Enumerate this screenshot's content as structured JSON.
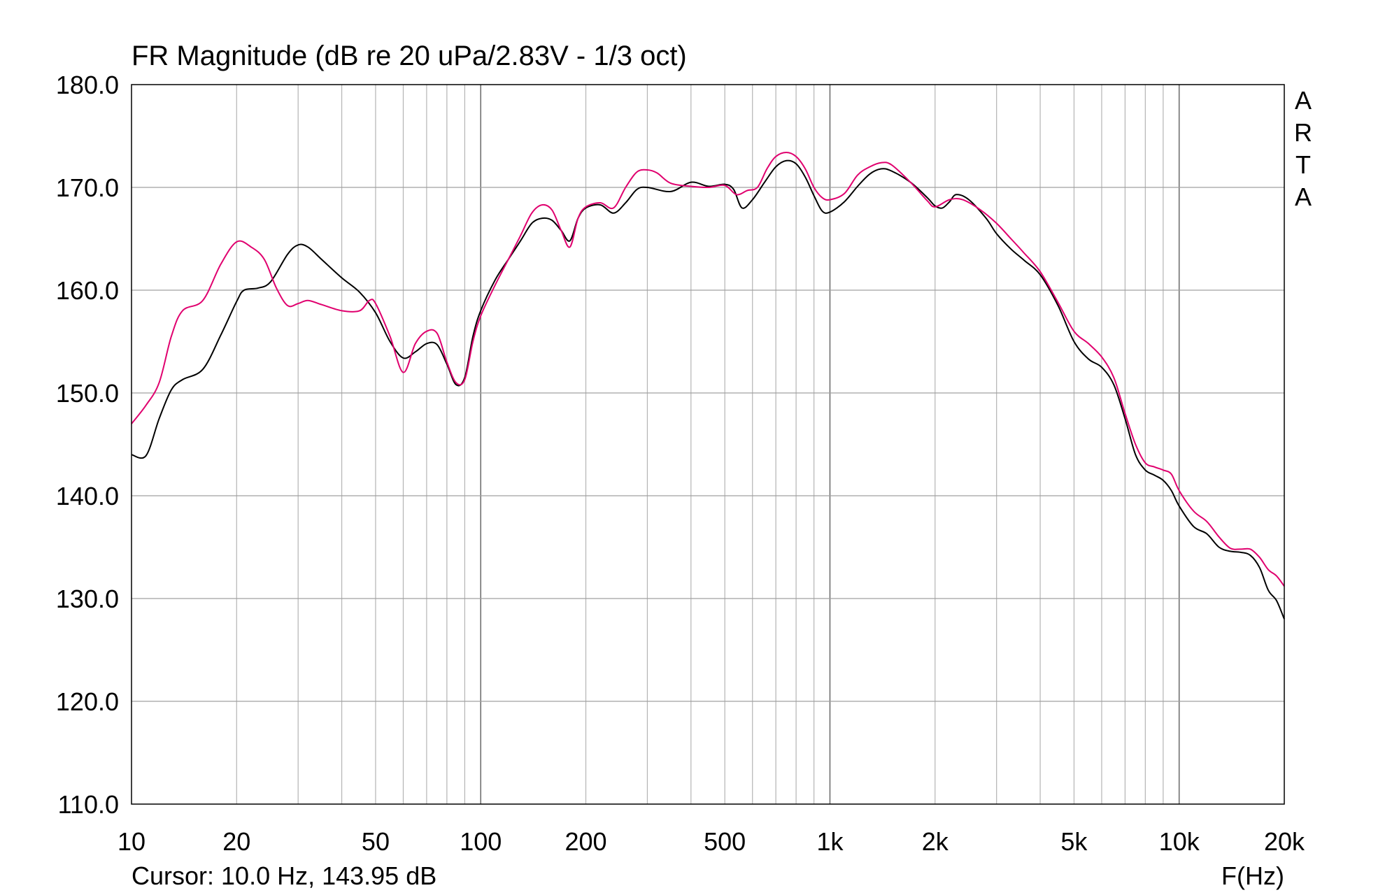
{
  "chart_data": {
    "type": "line",
    "title": "FR Magnitude (dB re 20 uPa/2.83V - 1/3 oct)",
    "xlabel": "F(Hz)",
    "ylabel": "",
    "xscale": "log",
    "xlim": [
      10,
      20000
    ],
    "ylim": [
      110,
      180
    ],
    "grid": true,
    "watermark": "ARTA",
    "cursor_text": "Cursor: 10.0 Hz, 143.95 dB",
    "x_ticks": [
      {
        "value": 10,
        "label": "10"
      },
      {
        "value": 20,
        "label": "20"
      },
      {
        "value": 50,
        "label": "50"
      },
      {
        "value": 100,
        "label": "100"
      },
      {
        "value": 200,
        "label": "200"
      },
      {
        "value": 500,
        "label": "500"
      },
      {
        "value": 1000,
        "label": "1k"
      },
      {
        "value": 2000,
        "label": "2k"
      },
      {
        "value": 5000,
        "label": "5k"
      },
      {
        "value": 10000,
        "label": "10k"
      },
      {
        "value": 20000,
        "label": "20k"
      }
    ],
    "y_ticks": [
      {
        "value": 110,
        "label": "110.0"
      },
      {
        "value": 120,
        "label": "120.0"
      },
      {
        "value": 130,
        "label": "130.0"
      },
      {
        "value": 140,
        "label": "140.0"
      },
      {
        "value": 150,
        "label": "150.0"
      },
      {
        "value": 160,
        "label": "160.0"
      },
      {
        "value": 170,
        "label": "170.0"
      },
      {
        "value": 180,
        "label": "180.0"
      }
    ],
    "colors": {
      "background": "#ffffff",
      "grid": "#a0a0a0",
      "frame": "#000000"
    },
    "series": [
      {
        "color": "#000000",
        "points": [
          [
            10,
            144.0
          ],
          [
            11,
            143.9
          ],
          [
            12,
            147.5
          ],
          [
            13,
            150.3
          ],
          [
            14,
            151.3
          ],
          [
            16,
            152.3
          ],
          [
            18,
            155.6
          ],
          [
            20,
            158.9
          ],
          [
            21,
            160.0
          ],
          [
            23,
            160.2
          ],
          [
            25,
            160.8
          ],
          [
            28,
            163.5
          ],
          [
            30,
            164.4
          ],
          [
            32,
            164.2
          ],
          [
            35,
            163.0
          ],
          [
            40,
            161.2
          ],
          [
            45,
            159.8
          ],
          [
            50,
            157.8
          ],
          [
            55,
            155.0
          ],
          [
            60,
            153.4
          ],
          [
            65,
            154.0
          ],
          [
            70,
            154.8
          ],
          [
            75,
            154.7
          ],
          [
            80,
            152.8
          ],
          [
            85,
            150.8
          ],
          [
            90,
            151.5
          ],
          [
            95,
            155.5
          ],
          [
            100,
            158.0
          ],
          [
            110,
            161.0
          ],
          [
            120,
            163.0
          ],
          [
            130,
            164.8
          ],
          [
            140,
            166.5
          ],
          [
            150,
            167.0
          ],
          [
            160,
            166.8
          ],
          [
            170,
            165.8
          ],
          [
            180,
            164.8
          ],
          [
            190,
            167.0
          ],
          [
            200,
            168.0
          ],
          [
            220,
            168.3
          ],
          [
            240,
            167.5
          ],
          [
            260,
            168.5
          ],
          [
            280,
            169.8
          ],
          [
            300,
            170.0
          ],
          [
            350,
            169.6
          ],
          [
            400,
            170.5
          ],
          [
            450,
            170.1
          ],
          [
            500,
            170.3
          ],
          [
            530,
            169.8
          ],
          [
            560,
            168.0
          ],
          [
            600,
            168.8
          ],
          [
            650,
            170.5
          ],
          [
            700,
            172.0
          ],
          [
            750,
            172.6
          ],
          [
            800,
            172.3
          ],
          [
            850,
            171.0
          ],
          [
            900,
            169.2
          ],
          [
            950,
            167.7
          ],
          [
            1000,
            167.6
          ],
          [
            1100,
            168.6
          ],
          [
            1200,
            170.1
          ],
          [
            1300,
            171.3
          ],
          [
            1400,
            171.8
          ],
          [
            1500,
            171.6
          ],
          [
            1700,
            170.5
          ],
          [
            1900,
            169.0
          ],
          [
            2000,
            168.2
          ],
          [
            2100,
            168.0
          ],
          [
            2200,
            168.6
          ],
          [
            2300,
            169.3
          ],
          [
            2500,
            168.8
          ],
          [
            2800,
            167.0
          ],
          [
            3000,
            165.5
          ],
          [
            3300,
            164.0
          ],
          [
            3600,
            162.9
          ],
          [
            4000,
            161.5
          ],
          [
            4500,
            158.5
          ],
          [
            5000,
            155.0
          ],
          [
            5500,
            153.3
          ],
          [
            6000,
            152.5
          ],
          [
            6500,
            150.8
          ],
          [
            7000,
            147.5
          ],
          [
            7500,
            144.0
          ],
          [
            8000,
            142.5
          ],
          [
            8500,
            142.0
          ],
          [
            9000,
            141.5
          ],
          [
            9500,
            140.5
          ],
          [
            10000,
            139.0
          ],
          [
            11000,
            137.0
          ],
          [
            12000,
            136.3
          ],
          [
            13000,
            135.0
          ],
          [
            14000,
            134.6
          ],
          [
            15000,
            134.5
          ],
          [
            16000,
            134.2
          ],
          [
            17000,
            133.0
          ],
          [
            18000,
            130.8
          ],
          [
            19000,
            129.8
          ],
          [
            20000,
            128.0
          ]
        ]
      },
      {
        "color": "#e0006e",
        "points": [
          [
            10,
            147.0
          ],
          [
            11,
            148.8
          ],
          [
            12,
            151.0
          ],
          [
            13,
            155.5
          ],
          [
            14,
            158.0
          ],
          [
            16,
            159.0
          ],
          [
            18,
            162.5
          ],
          [
            20,
            164.7
          ],
          [
            22,
            164.2
          ],
          [
            24,
            163.0
          ],
          [
            26,
            160.2
          ],
          [
            28,
            158.5
          ],
          [
            30,
            158.7
          ],
          [
            32,
            159.0
          ],
          [
            35,
            158.6
          ],
          [
            40,
            158.0
          ],
          [
            45,
            158.0
          ],
          [
            48,
            159.0
          ],
          [
            50,
            158.7
          ],
          [
            55,
            155.5
          ],
          [
            60,
            152.0
          ],
          [
            65,
            154.8
          ],
          [
            70,
            156.0
          ],
          [
            75,
            155.8
          ],
          [
            80,
            153.0
          ],
          [
            85,
            151.0
          ],
          [
            90,
            151.3
          ],
          [
            95,
            155.0
          ],
          [
            100,
            157.5
          ],
          [
            110,
            160.5
          ],
          [
            120,
            163.0
          ],
          [
            130,
            165.3
          ],
          [
            140,
            167.5
          ],
          [
            150,
            168.3
          ],
          [
            160,
            167.8
          ],
          [
            170,
            165.8
          ],
          [
            180,
            164.2
          ],
          [
            190,
            167.0
          ],
          [
            200,
            168.1
          ],
          [
            220,
            168.5
          ],
          [
            240,
            168.0
          ],
          [
            260,
            170.0
          ],
          [
            280,
            171.5
          ],
          [
            300,
            171.7
          ],
          [
            320,
            171.4
          ],
          [
            350,
            170.4
          ],
          [
            400,
            170.1
          ],
          [
            450,
            170.0
          ],
          [
            500,
            170.2
          ],
          [
            540,
            169.3
          ],
          [
            580,
            169.7
          ],
          [
            620,
            170.0
          ],
          [
            660,
            171.8
          ],
          [
            700,
            173.0
          ],
          [
            750,
            173.4
          ],
          [
            800,
            173.0
          ],
          [
            850,
            171.8
          ],
          [
            900,
            170.0
          ],
          [
            950,
            169.0
          ],
          [
            1000,
            168.8
          ],
          [
            1100,
            169.4
          ],
          [
            1200,
            171.2
          ],
          [
            1300,
            172.0
          ],
          [
            1400,
            172.4
          ],
          [
            1500,
            172.2
          ],
          [
            1700,
            170.5
          ],
          [
            1900,
            168.7
          ],
          [
            2000,
            168.1
          ],
          [
            2200,
            168.8
          ],
          [
            2400,
            168.8
          ],
          [
            2700,
            167.8
          ],
          [
            3000,
            166.5
          ],
          [
            3300,
            165.0
          ],
          [
            3600,
            163.6
          ],
          [
            4000,
            161.8
          ],
          [
            4500,
            158.8
          ],
          [
            5000,
            156.0
          ],
          [
            5500,
            154.8
          ],
          [
            6000,
            153.5
          ],
          [
            6500,
            151.5
          ],
          [
            7000,
            148.0
          ],
          [
            7500,
            145.0
          ],
          [
            8000,
            143.2
          ],
          [
            8500,
            142.8
          ],
          [
            9000,
            142.5
          ],
          [
            9500,
            142.1
          ],
          [
            10000,
            140.5
          ],
          [
            11000,
            138.5
          ],
          [
            12000,
            137.5
          ],
          [
            13000,
            136.0
          ],
          [
            14000,
            134.9
          ],
          [
            15000,
            134.8
          ],
          [
            16000,
            134.8
          ],
          [
            17000,
            134.0
          ],
          [
            18000,
            132.8
          ],
          [
            19000,
            132.2
          ],
          [
            20000,
            131.2
          ]
        ]
      }
    ]
  }
}
